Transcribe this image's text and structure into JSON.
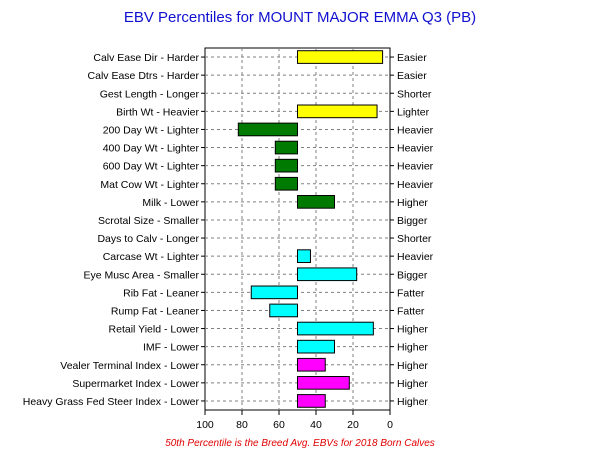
{
  "chart_data": {
    "type": "bar",
    "title": "EBV Percentiles for MOUNT MAJOR EMMA Q3 (PB)",
    "footnote": "50th Percentile is the Breed Avg. EBVs for 2018 Born Calves",
    "xlim": [
      100,
      0
    ],
    "x_reversed": true,
    "x_ticks": [
      100,
      80,
      60,
      40,
      20,
      0
    ],
    "baseline": 50,
    "grid": true,
    "rows": [
      {
        "left": "Calv Ease Dir - Harder",
        "right": "Easier",
        "value": 4,
        "color": "#ffff00"
      },
      {
        "left": "Calv Ease Dtrs - Harder",
        "right": "Easier",
        "value": null,
        "color": null
      },
      {
        "left": "Gest Length - Longer",
        "right": "Shorter",
        "value": null,
        "color": null
      },
      {
        "left": "Birth Wt - Heavier",
        "right": "Lighter",
        "value": 7,
        "color": "#ffff00"
      },
      {
        "left": "200 Day Wt - Lighter",
        "right": "Heavier",
        "value": 82,
        "color": "#007a00"
      },
      {
        "left": "400 Day Wt - Lighter",
        "right": "Heavier",
        "value": 62,
        "color": "#007a00"
      },
      {
        "left": "600 Day Wt - Lighter",
        "right": "Heavier",
        "value": 62,
        "color": "#007a00"
      },
      {
        "left": "Mat Cow Wt - Lighter",
        "right": "Heavier",
        "value": 62,
        "color": "#007a00"
      },
      {
        "left": "Milk - Lower",
        "right": "Higher",
        "value": 30,
        "color": "#007a00"
      },
      {
        "left": "Scrotal Size - Smaller",
        "right": "Bigger",
        "value": null,
        "color": null
      },
      {
        "left": "Days to Calv - Longer",
        "right": "Shorter",
        "value": null,
        "color": null
      },
      {
        "left": "Carcase Wt - Lighter",
        "right": "Heavier",
        "value": 43,
        "color": "#00ffff"
      },
      {
        "left": "Eye Musc Area - Smaller",
        "right": "Bigger",
        "value": 18,
        "color": "#00ffff"
      },
      {
        "left": "Rib Fat - Leaner",
        "right": "Fatter",
        "value": 75,
        "color": "#00ffff"
      },
      {
        "left": "Rump Fat - Leaner",
        "right": "Fatter",
        "value": 65,
        "color": "#00ffff"
      },
      {
        "left": "Retail Yield - Lower",
        "right": "Higher",
        "value": 9,
        "color": "#00ffff"
      },
      {
        "left": "IMF - Lower",
        "right": "Higher",
        "value": 30,
        "color": "#00ffff"
      },
      {
        "left": "Vealer Terminal Index - Lower",
        "right": "Higher",
        "value": 35,
        "color": "#ff00ff"
      },
      {
        "left": "Supermarket Index - Lower",
        "right": "Higher",
        "value": 22,
        "color": "#ff00ff"
      },
      {
        "left": "Heavy Grass Fed Steer Index - Lower",
        "right": "Higher",
        "value": 35,
        "color": "#ff00ff"
      }
    ]
  }
}
